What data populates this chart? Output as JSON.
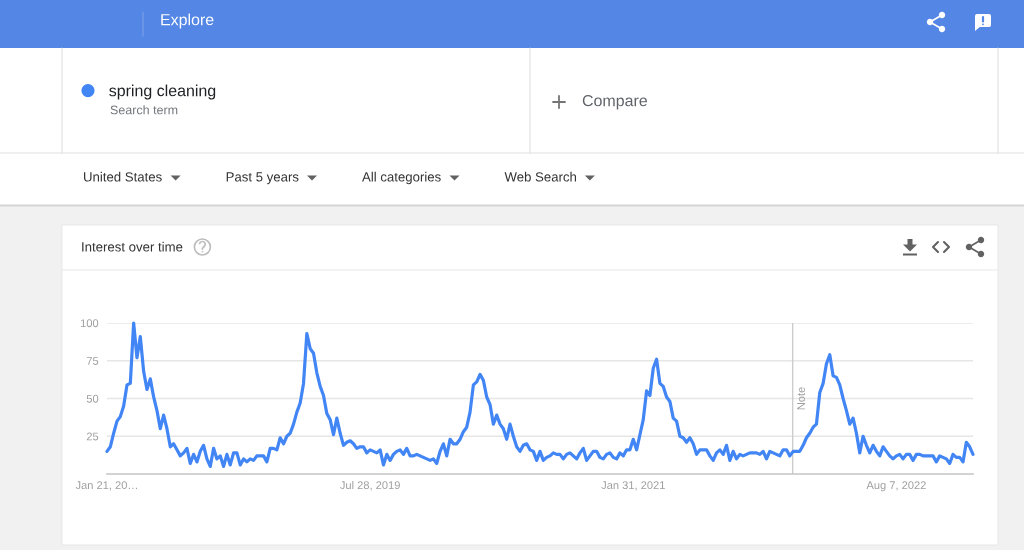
{
  "chart_data": {
    "type": "line",
    "title": "Interest over time",
    "x": [
      "2018-01-21",
      "2018-01-28",
      "2018-02-04",
      "2018-02-11",
      "2018-02-18",
      "2018-02-25",
      "2018-03-04",
      "2018-03-11",
      "2018-03-18",
      "2018-03-25",
      "2018-04-01",
      "2018-04-08",
      "2018-04-15",
      "2018-04-22",
      "2018-04-29",
      "2018-05-06",
      "2018-05-13",
      "2018-05-20",
      "2018-05-27",
      "2018-06-03",
      "2018-06-10",
      "2018-06-17",
      "2018-06-24",
      "2018-07-01",
      "2018-07-08",
      "2018-07-15",
      "2018-07-22",
      "2018-07-29",
      "2018-08-05",
      "2018-08-12",
      "2018-08-19",
      "2018-08-26",
      "2018-09-02",
      "2018-09-09",
      "2018-09-16",
      "2018-09-23",
      "2018-09-30",
      "2018-10-07",
      "2018-10-14",
      "2018-10-21",
      "2018-10-28",
      "2018-11-04",
      "2018-11-11",
      "2018-11-18",
      "2018-11-25",
      "2018-12-02",
      "2018-12-09",
      "2018-12-16",
      "2018-12-23",
      "2018-12-30",
      "2019-01-06",
      "2019-01-13",
      "2019-01-20",
      "2019-01-27",
      "2019-02-03",
      "2019-02-10",
      "2019-02-17",
      "2019-02-24",
      "2019-03-03",
      "2019-03-10",
      "2019-03-17",
      "2019-03-24",
      "2019-03-31",
      "2019-04-07",
      "2019-04-14",
      "2019-04-21",
      "2019-04-28",
      "2019-05-05",
      "2019-05-12",
      "2019-05-19",
      "2019-05-26",
      "2019-06-02",
      "2019-06-09",
      "2019-06-16",
      "2019-06-23",
      "2019-06-30",
      "2019-07-07",
      "2019-07-14",
      "2019-07-21",
      "2019-07-28",
      "2019-08-04",
      "2019-08-11",
      "2019-08-18",
      "2019-08-25",
      "2019-09-01",
      "2019-09-08",
      "2019-09-15",
      "2019-09-22",
      "2019-09-29",
      "2019-10-06",
      "2019-10-13",
      "2019-10-20",
      "2019-10-27",
      "2019-11-03",
      "2019-11-10",
      "2019-11-17",
      "2019-11-24",
      "2019-12-01",
      "2019-12-08",
      "2019-12-15",
      "2019-12-22",
      "2019-12-29",
      "2020-01-05",
      "2020-01-12",
      "2020-01-19",
      "2020-01-26",
      "2020-02-02",
      "2020-02-09",
      "2020-02-16",
      "2020-02-23",
      "2020-03-01",
      "2020-03-08",
      "2020-03-15",
      "2020-03-22",
      "2020-03-29",
      "2020-04-05",
      "2020-04-12",
      "2020-04-19",
      "2020-04-26",
      "2020-05-03",
      "2020-05-10",
      "2020-05-17",
      "2020-05-24",
      "2020-05-31",
      "2020-06-07",
      "2020-06-14",
      "2020-06-21",
      "2020-06-28",
      "2020-07-05",
      "2020-07-12",
      "2020-07-19",
      "2020-07-26",
      "2020-08-02",
      "2020-08-09",
      "2020-08-16",
      "2020-08-23",
      "2020-08-30",
      "2020-09-06",
      "2020-09-13",
      "2020-09-20",
      "2020-09-27",
      "2020-10-04",
      "2020-10-11",
      "2020-10-18",
      "2020-10-25",
      "2020-11-01",
      "2020-11-08",
      "2020-11-15",
      "2020-11-22",
      "2020-11-29",
      "2020-12-06",
      "2020-12-13",
      "2020-12-20",
      "2020-12-27",
      "2021-01-03",
      "2021-01-10",
      "2021-01-17",
      "2021-01-24",
      "2021-01-31",
      "2021-02-07",
      "2021-02-14",
      "2021-02-21",
      "2021-02-28",
      "2021-03-07",
      "2021-03-14",
      "2021-03-21",
      "2021-03-28",
      "2021-04-04",
      "2021-04-11",
      "2021-04-18",
      "2021-04-25",
      "2021-05-02",
      "2021-05-09",
      "2021-05-16",
      "2021-05-23",
      "2021-05-30",
      "2021-06-06",
      "2021-06-13",
      "2021-06-20",
      "2021-06-27",
      "2021-07-04",
      "2021-07-11",
      "2021-07-18",
      "2021-07-25",
      "2021-08-01",
      "2021-08-08",
      "2021-08-15",
      "2021-08-22",
      "2021-08-29",
      "2021-09-05",
      "2021-09-12",
      "2021-09-19",
      "2021-09-26",
      "2021-10-03",
      "2021-10-10",
      "2021-10-17",
      "2021-10-24",
      "2021-10-31",
      "2021-11-07",
      "2021-11-14",
      "2021-11-21",
      "2021-11-28",
      "2021-12-05",
      "2021-12-12",
      "2021-12-19",
      "2021-12-26",
      "2022-01-02",
      "2022-01-09",
      "2022-01-16",
      "2022-01-23",
      "2022-01-30",
      "2022-02-06",
      "2022-02-13",
      "2022-02-20",
      "2022-02-27",
      "2022-03-06",
      "2022-03-13",
      "2022-03-20",
      "2022-03-27",
      "2022-04-03",
      "2022-04-10",
      "2022-04-17",
      "2022-04-24",
      "2022-05-01",
      "2022-05-08",
      "2022-05-15",
      "2022-05-22",
      "2022-05-29",
      "2022-06-05",
      "2022-06-12",
      "2022-06-19",
      "2022-06-26",
      "2022-07-03",
      "2022-07-10",
      "2022-07-17",
      "2022-07-24",
      "2022-07-31",
      "2022-08-07",
      "2022-08-14",
      "2022-08-21",
      "2022-08-28",
      "2022-09-04",
      "2022-09-11",
      "2022-09-18",
      "2022-09-25",
      "2022-10-02",
      "2022-10-09",
      "2022-10-16",
      "2022-10-23",
      "2022-10-30",
      "2022-11-06",
      "2022-11-13",
      "2022-11-20",
      "2022-11-27",
      "2022-12-04",
      "2022-12-11",
      "2022-12-18",
      "2022-12-25",
      "2023-01-01",
      "2023-01-08",
      "2023-01-15"
    ],
    "series": [
      {
        "name": "spring cleaning",
        "color": "#4285f4",
        "values": [
          15,
          18,
          27,
          35,
          38,
          45,
          59,
          60,
          100,
          77,
          91,
          68,
          56,
          63,
          51,
          42,
          30,
          39,
          30,
          18,
          20,
          16,
          12,
          14,
          17,
          7,
          13,
          8,
          15,
          19,
          10,
          5,
          17,
          10,
          12,
          5,
          13,
          6,
          14,
          14,
          6,
          10,
          8,
          10,
          9,
          12,
          12,
          12,
          8,
          17,
          17,
          16,
          24,
          20,
          25,
          27,
          33,
          41,
          47,
          60,
          93,
          83,
          80,
          67,
          58,
          52,
          40,
          36,
          26,
          37,
          27,
          19,
          21,
          22,
          20,
          17,
          18,
          18,
          14,
          16,
          15,
          14,
          16,
          6,
          13,
          9,
          13,
          15,
          16,
          13,
          17,
          12,
          12,
          13,
          12,
          11,
          10,
          9,
          10,
          7,
          15,
          20,
          12,
          23,
          20,
          20,
          23,
          28,
          31,
          41,
          59,
          61,
          66,
          62,
          51,
          46,
          33,
          39,
          33,
          30,
          23,
          33,
          25,
          18,
          15,
          19,
          20,
          16,
          15,
          9,
          15,
          9,
          11,
          12,
          14,
          13,
          13,
          10,
          13,
          14,
          12,
          10,
          14,
          17,
          9,
          12,
          15,
          15,
          11,
          10,
          13,
          14,
          11,
          10,
          14,
          12,
          16,
          16,
          23,
          16,
          26,
          36,
          55,
          52,
          70,
          76,
          60,
          58,
          51,
          48,
          37,
          35,
          25,
          24,
          21,
          24,
          20,
          13,
          16,
          16,
          16,
          12,
          9,
          14,
          16,
          13,
          19,
          9,
          15,
          10,
          13,
          12,
          13,
          14,
          14,
          14,
          13,
          15,
          10,
          15,
          14,
          13,
          12,
          16,
          16,
          12,
          15,
          15,
          15,
          19,
          24,
          27,
          31,
          33,
          54,
          60,
          73,
          79,
          65,
          64,
          59,
          50,
          42,
          33,
          37,
          27,
          14,
          25,
          19,
          14,
          19,
          15,
          12,
          18,
          15,
          12,
          10,
          12,
          13,
          10,
          13,
          13,
          9,
          13,
          13,
          12,
          12,
          12,
          12,
          8,
          12,
          11,
          10,
          7,
          13,
          11,
          11,
          8,
          21,
          18,
          13
        ]
      }
    ],
    "xlim": [
      "2018-01-21",
      "2023-01-15"
    ],
    "xticks": [
      {
        "value": "2018-01-21",
        "label": "Jan 21, 20…"
      },
      {
        "value": "2019-07-28",
        "label": "Jul 28, 2019"
      },
      {
        "value": "2021-01-31",
        "label": "Jan 31, 2021"
      },
      {
        "value": "2022-08-07",
        "label": "Aug 7, 2022"
      }
    ],
    "ylim": [
      0,
      100
    ],
    "yticks": [
      25,
      50,
      75,
      100
    ],
    "grid": "y",
    "legend": "top left",
    "ref_lines": [
      {
        "axis": "x",
        "value": "2022-01-01",
        "label": "Note",
        "color": "#cccccc"
      }
    ],
    "annotations": [
      "Explore",
      "Search term",
      "Compare",
      "United States",
      "Past 5 years",
      "All categories",
      "Web Search"
    ]
  }
}
